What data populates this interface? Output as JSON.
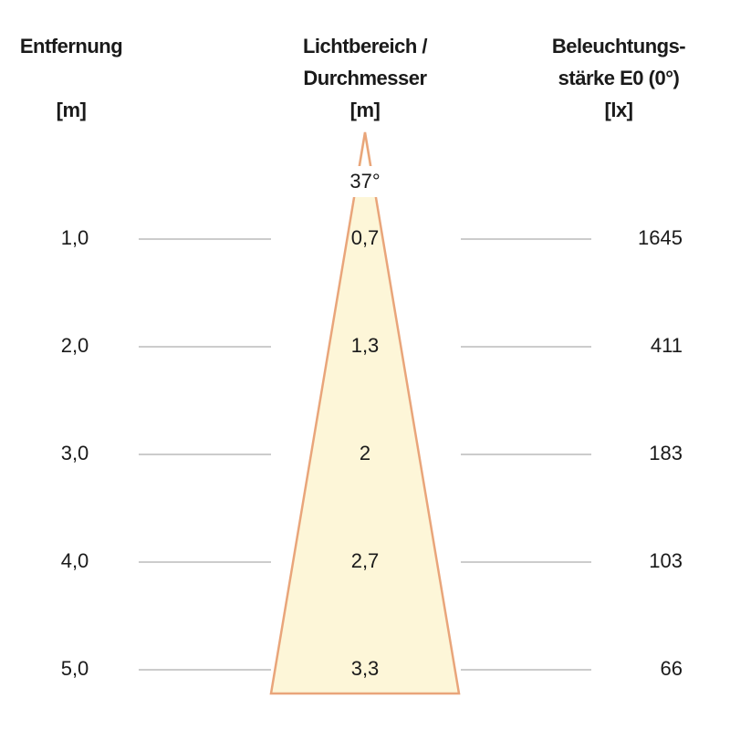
{
  "headers": {
    "distance": [
      "Entfernung",
      "[m]"
    ],
    "diameter": [
      "Lichtbereich /",
      "Durchmesser",
      "[m]"
    ],
    "illuminance": [
      "Beleuchtungs-",
      "stärke E0 (0°)",
      "[lx]"
    ]
  },
  "angle": "37°",
  "rows": [
    {
      "distance": "1,0",
      "diameter": "0,7",
      "illuminance": "1645"
    },
    {
      "distance": "2,0",
      "diameter": "1,3",
      "illuminance": "411"
    },
    {
      "distance": "3,0",
      "diameter": "2",
      "illuminance": "183"
    },
    {
      "distance": "4,0",
      "diameter": "2,7",
      "illuminance": "103"
    },
    {
      "distance": "5,0",
      "diameter": "3,3",
      "illuminance": "66"
    }
  ]
}
